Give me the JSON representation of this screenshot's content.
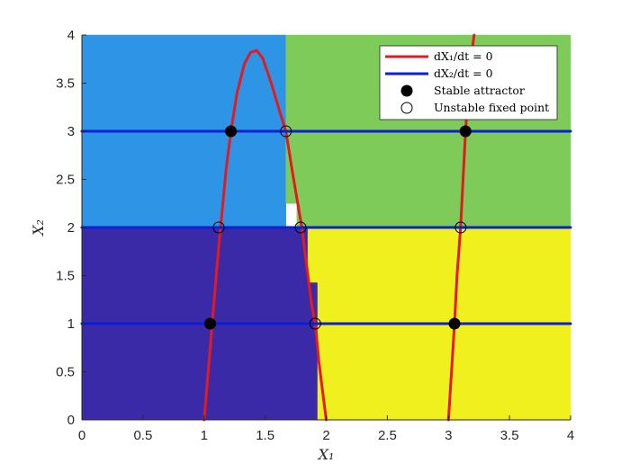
{
  "chart_data": {
    "type": "line",
    "xlabel": "X₁",
    "ylabel": "X₂",
    "xlim": [
      0,
      4
    ],
    "ylim": [
      0,
      4
    ],
    "xticks": [
      "0",
      "0.5",
      "1",
      "1.5",
      "2",
      "2.5",
      "3",
      "3.5",
      "4"
    ],
    "yticks": [
      "0",
      "0.5",
      "1",
      "1.5",
      "2",
      "2.5",
      "3",
      "3.5",
      "4"
    ],
    "grid": false,
    "legend_position": "top-right",
    "basins": [
      {
        "color": "#3B2AA8",
        "polygon": [
          [
            0,
            0
          ],
          [
            1.93,
            0
          ],
          [
            1.93,
            1.43
          ],
          [
            1.85,
            1.43
          ],
          [
            1.85,
            2.0
          ],
          [
            0,
            2.0
          ]
        ]
      },
      {
        "color": "#2E95E6",
        "polygon": [
          [
            0,
            2.0
          ],
          [
            1.67,
            2.0
          ],
          [
            1.67,
            4.0
          ],
          [
            0,
            4.0
          ]
        ]
      },
      {
        "color": "#7ECB5A",
        "polygon": [
          [
            1.67,
            2.25
          ],
          [
            1.76,
            2.25
          ],
          [
            1.76,
            2.0
          ],
          [
            4,
            2.0
          ],
          [
            4,
            4
          ],
          [
            1.67,
            4
          ]
        ]
      },
      {
        "color": "#F0F01E",
        "polygon": [
          [
            1.93,
            0
          ],
          [
            4,
            0
          ],
          [
            4,
            2.0
          ],
          [
            1.85,
            2.0
          ],
          [
            1.85,
            1.43
          ],
          [
            1.93,
            1.43
          ]
        ]
      }
    ],
    "series": [
      {
        "name": "dX₁/dt = 0",
        "color": "#E41A1C",
        "points": [
          [
            1.0,
            0.0
          ],
          [
            1.02,
            0.3
          ],
          [
            1.04,
            0.6
          ],
          [
            1.06,
            0.9
          ],
          [
            1.08,
            1.2
          ],
          [
            1.1,
            1.5
          ],
          [
            1.12,
            1.8
          ],
          [
            1.15,
            2.2
          ],
          [
            1.18,
            2.6
          ],
          [
            1.22,
            3.0
          ],
          [
            1.27,
            3.4
          ],
          [
            1.33,
            3.7
          ],
          [
            1.38,
            3.82
          ],
          [
            1.43,
            3.84
          ],
          [
            1.48,
            3.76
          ],
          [
            1.55,
            3.5
          ],
          [
            1.62,
            3.2
          ],
          [
            1.67,
            3.0
          ],
          [
            1.72,
            2.6
          ],
          [
            1.76,
            2.3
          ],
          [
            1.8,
            2.0
          ],
          [
            1.83,
            1.7
          ],
          [
            1.86,
            1.4
          ],
          [
            1.88,
            1.2
          ],
          [
            1.91,
            1.0
          ],
          [
            1.94,
            0.6
          ],
          [
            1.97,
            0.3
          ],
          [
            2.0,
            0.0
          ]
        ]
      },
      {
        "name": "dX₁/dt = 0",
        "color": "#E41A1C",
        "points": [
          [
            3.0,
            0.0
          ],
          [
            3.02,
            0.4
          ],
          [
            3.04,
            0.8
          ],
          [
            3.05,
            1.0
          ],
          [
            3.07,
            1.5
          ],
          [
            3.1,
            2.0
          ],
          [
            3.12,
            2.5
          ],
          [
            3.14,
            3.0
          ],
          [
            3.16,
            3.4
          ],
          [
            3.19,
            3.8
          ],
          [
            3.21,
            4.0
          ]
        ]
      },
      {
        "name": "dX₂/dt = 0",
        "color": "#0A1FD6",
        "points": [
          [
            0,
            1
          ],
          [
            4,
            1
          ]
        ]
      },
      {
        "name": "dX₂/dt = 0",
        "color": "#0A1FD6",
        "points": [
          [
            0,
            2
          ],
          [
            4,
            2
          ]
        ]
      },
      {
        "name": "dX₂/dt = 0",
        "color": "#0A1FD6",
        "points": [
          [
            0,
            3
          ],
          [
            4,
            3
          ]
        ]
      }
    ],
    "stable_points": [
      [
        1.05,
        1.0
      ],
      [
        3.05,
        1.0
      ],
      [
        1.22,
        3.0
      ],
      [
        3.14,
        3.0
      ]
    ],
    "unstable_points": [
      [
        1.12,
        2.0
      ],
      [
        1.79,
        2.0
      ],
      [
        3.1,
        2.0
      ],
      [
        1.67,
        3.0
      ],
      [
        1.91,
        1.0
      ]
    ],
    "legend": [
      {
        "label": "dX₁/dt = 0",
        "kind": "line",
        "color": "#E41A1C"
      },
      {
        "label": "dX₂/dt = 0",
        "kind": "line",
        "color": "#0A1FD6"
      },
      {
        "label": "Stable attractor",
        "kind": "filled-circle",
        "color": "#000000"
      },
      {
        "label": "Unstable fixed point",
        "kind": "open-circle",
        "color": "#000000"
      }
    ]
  }
}
